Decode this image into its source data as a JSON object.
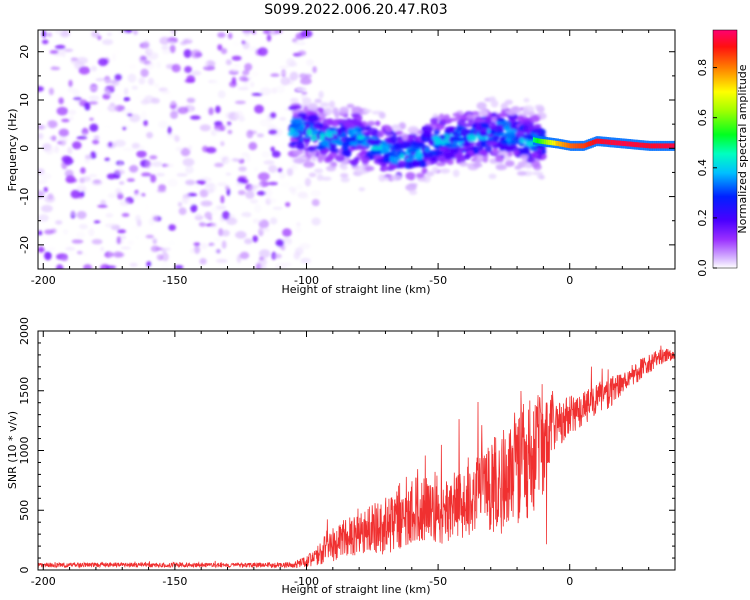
{
  "figure": {
    "title": "S099.2022.006.20.47.R03"
  },
  "chart_data": [
    {
      "type": "heatmap",
      "title": "S099.2022.006.20.47.R03",
      "xlabel": "Height of straight line (km)",
      "ylabel": "Frequency (Hz)",
      "xlim": [
        -202,
        40
      ],
      "ylim": [
        -25,
        24.5
      ],
      "xticks": [
        -200,
        -150,
        -100,
        -50,
        0
      ],
      "yticks": [
        -20,
        -10,
        0,
        10,
        20
      ],
      "colorbar": {
        "label": "Normalized spectral amplitude",
        "range": [
          0,
          0.95
        ],
        "ticks": [
          0.0,
          0.2,
          0.4,
          0.6,
          0.8
        ]
      },
      "regions": [
        {
          "x_range": [
            -202,
            -100
          ],
          "freq_range": [
            -25,
            24.5
          ],
          "amplitude_max": 0.15,
          "pattern": "scattered noise"
        },
        {
          "x_range": [
            -105,
            -10
          ],
          "freq_range": [
            -12,
            9
          ],
          "amplitude_max": 0.4,
          "pattern": "noisy band"
        },
        {
          "x_range": [
            -15,
            40
          ],
          "freq_range": [
            -1,
            2
          ],
          "amplitude_max": 0.95,
          "pattern": "narrow line near 0-2 Hz"
        }
      ],
      "ridge": {
        "x": [
          -105,
          -90,
          -80,
          -72,
          -65,
          -57,
          -48,
          -38,
          -28,
          -20,
          -12,
          -5,
          0,
          5,
          10,
          20,
          30,
          40
        ],
        "freq": [
          4,
          2,
          2,
          0,
          -1.5,
          -1,
          2,
          2,
          3,
          2.5,
          1.5,
          1,
          0.5,
          0.5,
          1.5,
          1,
          0.5,
          0.5
        ],
        "amplitude": [
          0.18,
          0.25,
          0.22,
          0.3,
          0.3,
          0.28,
          0.35,
          0.3,
          0.35,
          0.33,
          0.55,
          0.75,
          0.82,
          0.85,
          0.9,
          0.92,
          0.9,
          0.92
        ]
      }
    },
    {
      "type": "line",
      "xlabel": "Height of straight line (km)",
      "ylabel": "SNR (10 * v/v)",
      "xlim": [
        -202,
        40
      ],
      "ylim": [
        0,
        2000
      ],
      "xticks": [
        -200,
        -150,
        -100,
        -50,
        0
      ],
      "yticks": [
        0,
        500,
        1000,
        1500,
        2000
      ],
      "series": [
        {
          "color": "#f03030",
          "x": [
            -202,
            -180,
            -160,
            -140,
            -120,
            -105,
            -100,
            -95,
            -90,
            -85,
            -80,
            -75,
            -70,
            -65,
            -60,
            -55,
            -50,
            -45,
            -40,
            -35,
            -30,
            -25,
            -20,
            -15,
            -10,
            -5,
            0,
            5,
            10,
            15,
            20,
            25,
            30,
            35,
            40
          ],
          "values": [
            40,
            40,
            40,
            40,
            40,
            40,
            60,
            130,
            200,
            260,
            280,
            330,
            340,
            420,
            460,
            500,
            430,
            480,
            560,
            620,
            660,
            700,
            820,
            880,
            1060,
            1190,
            1280,
            1330,
            1420,
            1460,
            1570,
            1640,
            1720,
            1780,
            1810
          ],
          "spread": [
            25,
            25,
            25,
            25,
            25,
            30,
            60,
            120,
            180,
            200,
            220,
            250,
            300,
            350,
            350,
            350,
            300,
            350,
            400,
            450,
            500,
            550,
            600,
            650,
            600,
            250,
            200,
            180,
            170,
            160,
            130,
            120,
            100,
            80,
            60
          ]
        }
      ]
    }
  ]
}
